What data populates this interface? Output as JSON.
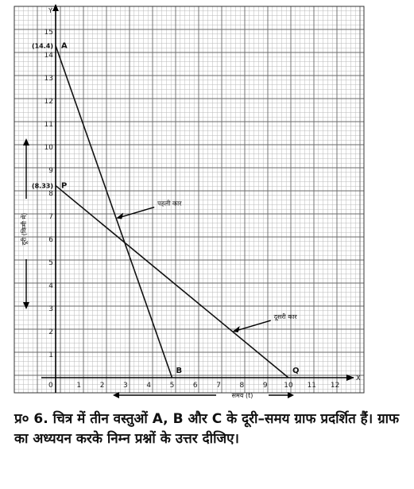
{
  "chart_data": {
    "type": "line",
    "title": "",
    "xlabel": "समय (t)",
    "ylabel": "दूरी (किमी में)",
    "xlim": [
      0,
      12.5
    ],
    "ylim": [
      0,
      15.5
    ],
    "x_ticks": [
      "1",
      "2",
      "3",
      "4",
      "5",
      "6",
      "7",
      "8",
      "9",
      "10",
      "11",
      "12"
    ],
    "y_ticks": [
      "1",
      "2",
      "3",
      "4",
      "5",
      "6",
      "7",
      "8",
      "9",
      "10",
      "11",
      "12",
      "13",
      "14",
      "15"
    ],
    "grid": true,
    "x_axis_letter": "X",
    "y_axis_letter": "Y",
    "points": [
      {
        "label": "A",
        "x": 0,
        "y": 14.4,
        "coord_text": "(14.4)"
      },
      {
        "label": "B",
        "x": 5,
        "y": 0,
        "coord_text": ""
      },
      {
        "label": "P",
        "x": 0,
        "y": 8.33,
        "coord_text": "(8.33)"
      },
      {
        "label": "Q",
        "x": 10,
        "y": 0,
        "coord_text": ""
      }
    ],
    "series": [
      {
        "name": "पहली कार",
        "x": [
          0,
          5
        ],
        "y": [
          14.4,
          0
        ]
      },
      {
        "name": "दूसरी कार",
        "x": [
          0,
          10
        ],
        "y": [
          8.33,
          0
        ]
      }
    ],
    "annotations": [
      {
        "text": "पहली कार",
        "series": 0,
        "at_x": 2.6
      },
      {
        "text": "दूसरी कार",
        "series": 1,
        "at_x": 7.6
      }
    ]
  },
  "question_text": "प्र० 6. चित्र में तीन वस्तुओं A, B और C के दूरी–समय ग्राफ प्रदर्शित हैं। ग्राफ का अध्ययन करके निम्न प्रश्नों के उत्तर दीजिए।"
}
